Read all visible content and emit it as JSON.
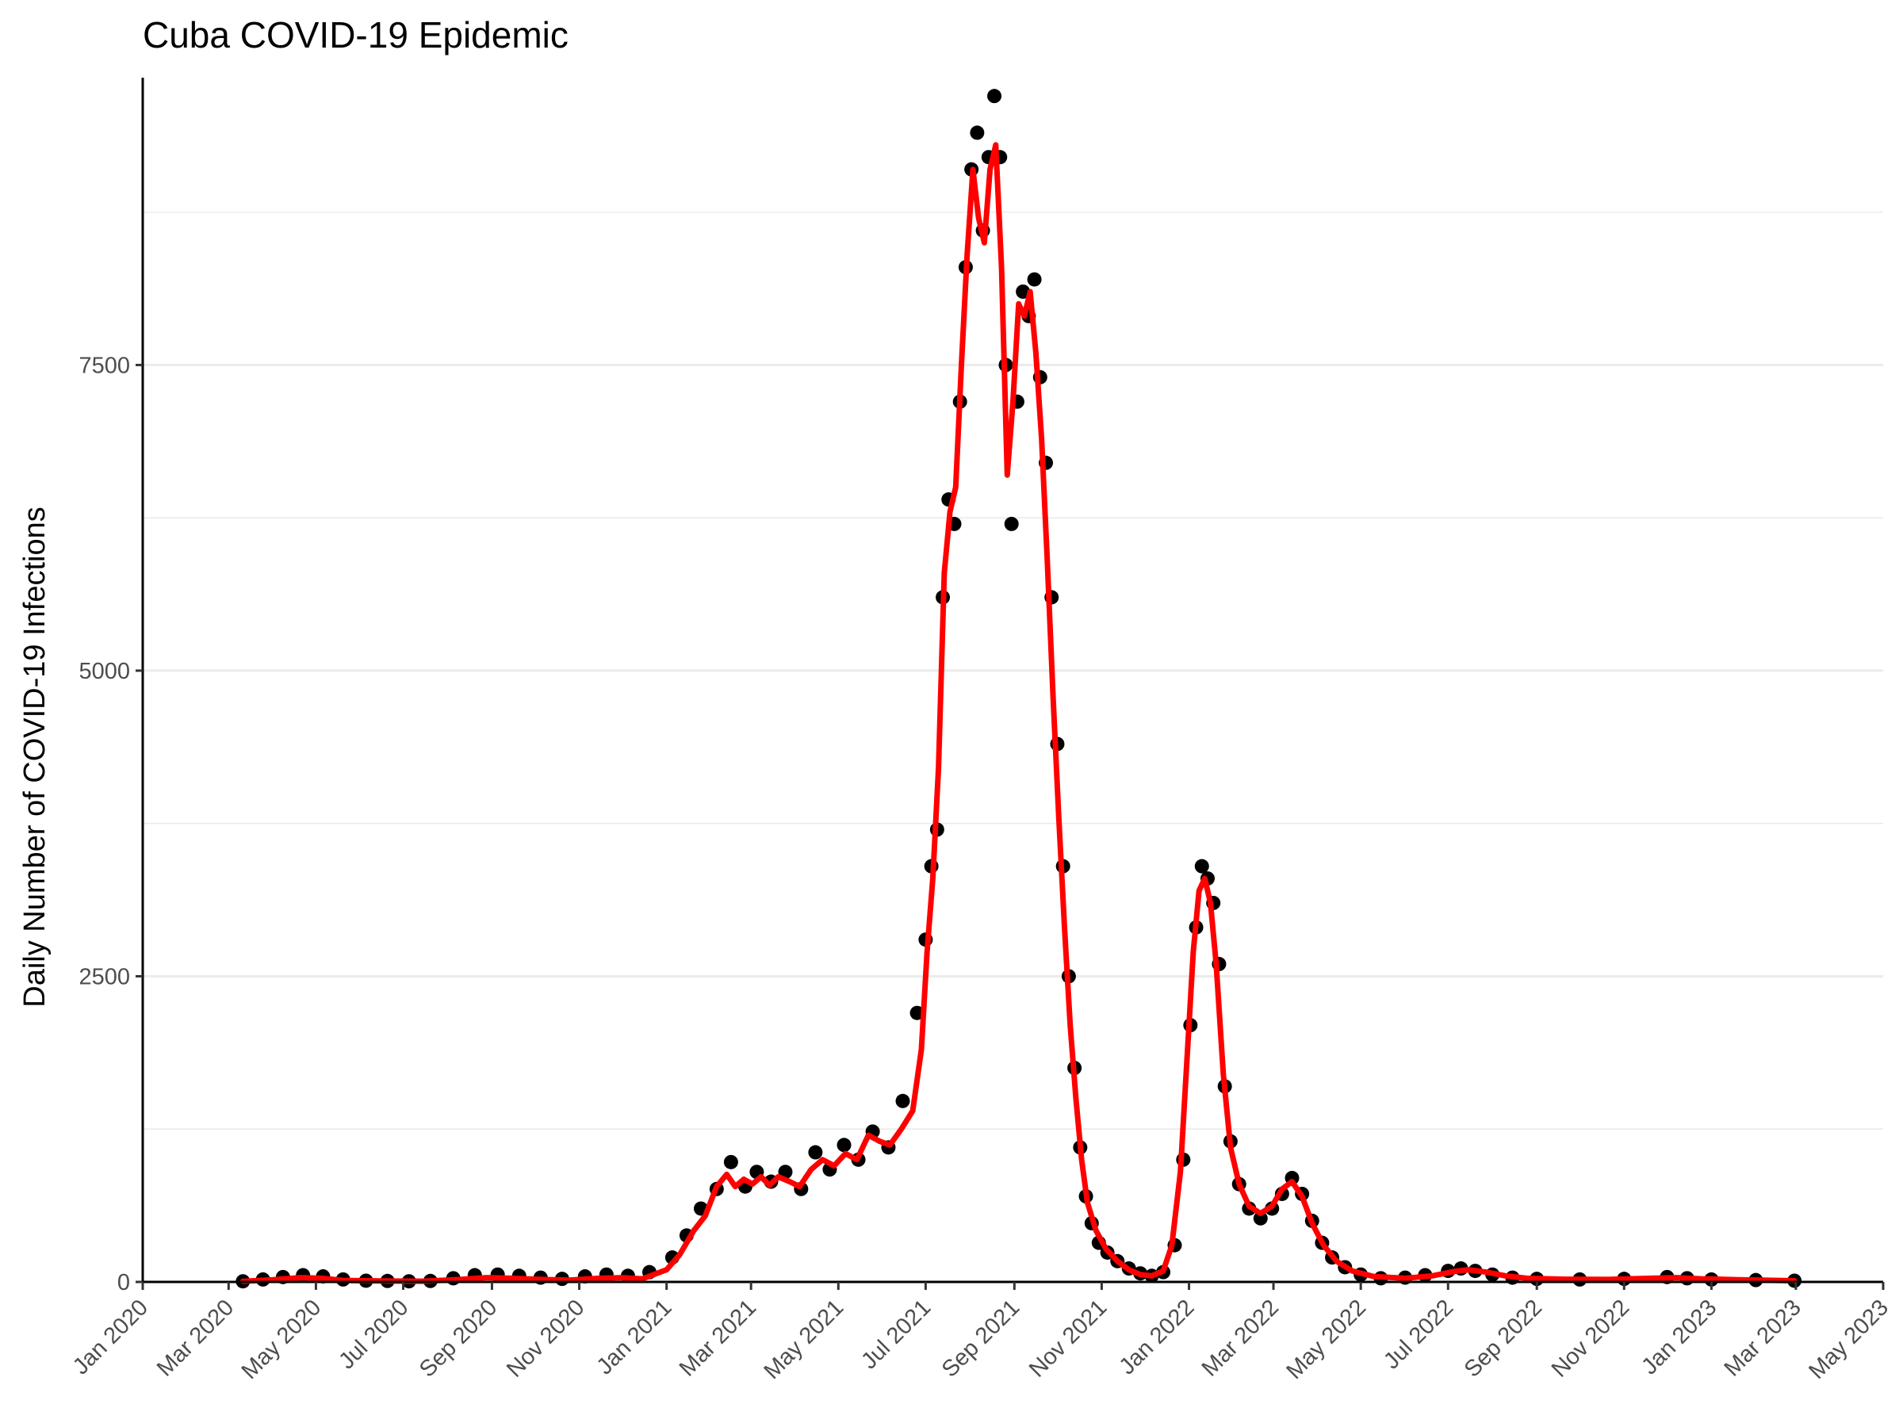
{
  "chart_data": {
    "type": "scatter",
    "title": "Cuba COVID-19 Epidemic",
    "xlabel": "",
    "ylabel": "Daily Number of COVID-19 Infections",
    "x_type": "date",
    "xlim": [
      "2020-01-01",
      "2023-05-01"
    ],
    "ylim": [
      0,
      9850
    ],
    "x_ticks": [
      "2020-01-01",
      "2020-03-01",
      "2020-05-01",
      "2020-07-01",
      "2020-09-01",
      "2020-11-01",
      "2021-01-01",
      "2021-03-01",
      "2021-05-01",
      "2021-07-01",
      "2021-09-01",
      "2021-11-01",
      "2022-01-01",
      "2022-03-01",
      "2022-05-01",
      "2022-07-01",
      "2022-09-01",
      "2022-11-01",
      "2023-01-01",
      "2023-03-01",
      "2023-05-01"
    ],
    "x_tick_labels": [
      "Jan 2020",
      "Mar 2020",
      "May 2020",
      "Jul 2020",
      "Sep 2020",
      "Nov 2020",
      "Jan 2021",
      "Mar 2021",
      "May 2021",
      "Jul 2021",
      "Sep 2021",
      "Nov 2021",
      "Jan 2022",
      "Mar 2022",
      "May 2022",
      "Jul 2022",
      "Sep 2022",
      "Nov 2022",
      "Jan 2023",
      "Mar 2023",
      "May 2023"
    ],
    "y_ticks": [
      0,
      2500,
      5000,
      7500
    ],
    "y_tick_labels": [
      "0",
      "2500",
      "5000",
      "7500"
    ],
    "y_minor_ticks": [
      1250,
      3750,
      6250,
      8750
    ],
    "grid": true,
    "legend": "none",
    "series": [
      {
        "kind": "points",
        "color": "#000000",
        "data": [
          [
            "2020-03-11",
            5
          ],
          [
            "2020-03-25",
            20
          ],
          [
            "2020-04-08",
            40
          ],
          [
            "2020-04-22",
            55
          ],
          [
            "2020-05-06",
            45
          ],
          [
            "2020-05-20",
            20
          ],
          [
            "2020-06-05",
            10
          ],
          [
            "2020-06-20",
            8
          ],
          [
            "2020-07-05",
            5
          ],
          [
            "2020-07-20",
            8
          ],
          [
            "2020-08-05",
            30
          ],
          [
            "2020-08-20",
            55
          ],
          [
            "2020-09-05",
            60
          ],
          [
            "2020-09-20",
            50
          ],
          [
            "2020-10-05",
            35
          ],
          [
            "2020-10-20",
            25
          ],
          [
            "2020-11-05",
            45
          ],
          [
            "2020-11-20",
            60
          ],
          [
            "2020-12-05",
            50
          ],
          [
            "2020-12-20",
            80
          ],
          [
            "2021-01-05",
            200
          ],
          [
            "2021-01-15",
            380
          ],
          [
            "2021-01-25",
            600
          ],
          [
            "2021-02-05",
            760
          ],
          [
            "2021-02-15",
            980
          ],
          [
            "2021-02-25",
            780
          ],
          [
            "2021-03-05",
            900
          ],
          [
            "2021-03-15",
            820
          ],
          [
            "2021-03-25",
            900
          ],
          [
            "2021-04-05",
            760
          ],
          [
            "2021-04-15",
            1060
          ],
          [
            "2021-04-25",
            920
          ],
          [
            "2021-05-05",
            1120
          ],
          [
            "2021-05-15",
            1000
          ],
          [
            "2021-05-25",
            1230
          ],
          [
            "2021-06-05",
            1100
          ],
          [
            "2021-06-15",
            1480
          ],
          [
            "2021-06-25",
            2200
          ],
          [
            "2021-07-01",
            2800
          ],
          [
            "2021-07-05",
            3400
          ],
          [
            "2021-07-09",
            3700
          ],
          [
            "2021-07-13",
            5600
          ],
          [
            "2021-07-17",
            6400
          ],
          [
            "2021-07-21",
            6200
          ],
          [
            "2021-07-25",
            7200
          ],
          [
            "2021-07-29",
            8300
          ],
          [
            "2021-08-02",
            9100
          ],
          [
            "2021-08-06",
            9400
          ],
          [
            "2021-08-10",
            8600
          ],
          [
            "2021-08-14",
            9200
          ],
          [
            "2021-08-18",
            9700
          ],
          [
            "2021-08-22",
            9200
          ],
          [
            "2021-08-26",
            7500
          ],
          [
            "2021-08-30",
            6200
          ],
          [
            "2021-09-03",
            7200
          ],
          [
            "2021-09-07",
            8100
          ],
          [
            "2021-09-11",
            7900
          ],
          [
            "2021-09-15",
            8200
          ],
          [
            "2021-09-19",
            7400
          ],
          [
            "2021-09-23",
            6700
          ],
          [
            "2021-09-27",
            5600
          ],
          [
            "2021-10-01",
            4400
          ],
          [
            "2021-10-05",
            3400
          ],
          [
            "2021-10-09",
            2500
          ],
          [
            "2021-10-13",
            1750
          ],
          [
            "2021-10-17",
            1100
          ],
          [
            "2021-10-21",
            700
          ],
          [
            "2021-10-25",
            480
          ],
          [
            "2021-10-30",
            320
          ],
          [
            "2021-11-05",
            240
          ],
          [
            "2021-11-12",
            170
          ],
          [
            "2021-11-20",
            110
          ],
          [
            "2021-11-28",
            70
          ],
          [
            "2021-12-06",
            50
          ],
          [
            "2021-12-14",
            80
          ],
          [
            "2021-12-22",
            300
          ],
          [
            "2021-12-28",
            1000
          ],
          [
            "2022-01-02",
            2100
          ],
          [
            "2022-01-06",
            2900
          ],
          [
            "2022-01-10",
            3400
          ],
          [
            "2022-01-14",
            3300
          ],
          [
            "2022-01-18",
            3100
          ],
          [
            "2022-01-22",
            2600
          ],
          [
            "2022-01-26",
            1600
          ],
          [
            "2022-01-30",
            1150
          ],
          [
            "2022-02-05",
            800
          ],
          [
            "2022-02-12",
            600
          ],
          [
            "2022-02-20",
            520
          ],
          [
            "2022-02-28",
            600
          ],
          [
            "2022-03-07",
            720
          ],
          [
            "2022-03-14",
            850
          ],
          [
            "2022-03-21",
            720
          ],
          [
            "2022-03-28",
            500
          ],
          [
            "2022-04-04",
            320
          ],
          [
            "2022-04-11",
            200
          ],
          [
            "2022-04-20",
            120
          ],
          [
            "2022-05-01",
            60
          ],
          [
            "2022-05-15",
            30
          ],
          [
            "2022-06-01",
            35
          ],
          [
            "2022-06-15",
            55
          ],
          [
            "2022-07-01",
            90
          ],
          [
            "2022-07-10",
            110
          ],
          [
            "2022-07-20",
            90
          ],
          [
            "2022-08-01",
            60
          ],
          [
            "2022-08-15",
            35
          ],
          [
            "2022-09-01",
            25
          ],
          [
            "2022-10-01",
            20
          ],
          [
            "2022-11-01",
            25
          ],
          [
            "2022-12-01",
            40
          ],
          [
            "2022-12-15",
            30
          ],
          [
            "2023-01-01",
            20
          ],
          [
            "2023-02-01",
            15
          ],
          [
            "2023-02-28",
            10
          ]
        ]
      },
      {
        "kind": "line",
        "color": "#ff0000",
        "data": [
          [
            "2020-03-11",
            5
          ],
          [
            "2020-04-01",
            18
          ],
          [
            "2020-04-20",
            35
          ],
          [
            "2020-05-05",
            30
          ],
          [
            "2020-05-20",
            12
          ],
          [
            "2020-06-15",
            8
          ],
          [
            "2020-07-15",
            6
          ],
          [
            "2020-08-10",
            20
          ],
          [
            "2020-08-28",
            35
          ],
          [
            "2020-09-15",
            30
          ],
          [
            "2020-10-05",
            20
          ],
          [
            "2020-10-25",
            15
          ],
          [
            "2020-11-15",
            30
          ],
          [
            "2020-12-01",
            35
          ],
          [
            "2020-12-15",
            25
          ],
          [
            "2021-01-01",
            100
          ],
          [
            "2021-01-10",
            220
          ],
          [
            "2021-01-20",
            420
          ],
          [
            "2021-01-28",
            540
          ],
          [
            "2021-02-05",
            780
          ],
          [
            "2021-02-12",
            880
          ],
          [
            "2021-02-18",
            780
          ],
          [
            "2021-02-24",
            840
          ],
          [
            "2021-03-02",
            800
          ],
          [
            "2021-03-08",
            860
          ],
          [
            "2021-03-14",
            790
          ],
          [
            "2021-03-20",
            860
          ],
          [
            "2021-03-28",
            820
          ],
          [
            "2021-04-04",
            780
          ],
          [
            "2021-04-12",
            920
          ],
          [
            "2021-04-20",
            1000
          ],
          [
            "2021-04-28",
            950
          ],
          [
            "2021-05-06",
            1050
          ],
          [
            "2021-05-14",
            1000
          ],
          [
            "2021-05-22",
            1200
          ],
          [
            "2021-05-30",
            1150
          ],
          [
            "2021-06-06",
            1120
          ],
          [
            "2021-06-14",
            1250
          ],
          [
            "2021-06-22",
            1400
          ],
          [
            "2021-06-28",
            1900
          ],
          [
            "2021-07-02",
            2700
          ],
          [
            "2021-07-06",
            3300
          ],
          [
            "2021-07-10",
            4200
          ],
          [
            "2021-07-14",
            5800
          ],
          [
            "2021-07-18",
            6300
          ],
          [
            "2021-07-22",
            6500
          ],
          [
            "2021-07-26",
            7500
          ],
          [
            "2021-07-30",
            8400
          ],
          [
            "2021-08-03",
            9100
          ],
          [
            "2021-08-07",
            8700
          ],
          [
            "2021-08-11",
            8500
          ],
          [
            "2021-08-15",
            9100
          ],
          [
            "2021-08-19",
            9300
          ],
          [
            "2021-08-23",
            8300
          ],
          [
            "2021-08-27",
            6600
          ],
          [
            "2021-08-31",
            7200
          ],
          [
            "2021-09-04",
            8000
          ],
          [
            "2021-09-08",
            7900
          ],
          [
            "2021-09-12",
            8100
          ],
          [
            "2021-09-16",
            7600
          ],
          [
            "2021-09-20",
            6900
          ],
          [
            "2021-09-24",
            5900
          ],
          [
            "2021-09-28",
            4800
          ],
          [
            "2021-10-02",
            3800
          ],
          [
            "2021-10-06",
            2900
          ],
          [
            "2021-10-10",
            2100
          ],
          [
            "2021-10-14",
            1500
          ],
          [
            "2021-10-18",
            1000
          ],
          [
            "2021-10-22",
            650
          ],
          [
            "2021-10-28",
            420
          ],
          [
            "2021-11-04",
            270
          ],
          [
            "2021-11-12",
            170
          ],
          [
            "2021-11-20",
            100
          ],
          [
            "2021-11-28",
            60
          ],
          [
            "2021-12-06",
            50
          ],
          [
            "2021-12-14",
            90
          ],
          [
            "2021-12-20",
            300
          ],
          [
            "2021-12-26",
            900
          ],
          [
            "2021-12-31",
            1900
          ],
          [
            "2022-01-04",
            2700
          ],
          [
            "2022-01-08",
            3200
          ],
          [
            "2022-01-12",
            3300
          ],
          [
            "2022-01-16",
            3100
          ],
          [
            "2022-01-20",
            2600
          ],
          [
            "2022-01-25",
            1700
          ],
          [
            "2022-01-30",
            1100
          ],
          [
            "2022-02-05",
            800
          ],
          [
            "2022-02-12",
            620
          ],
          [
            "2022-02-20",
            560
          ],
          [
            "2022-02-28",
            620
          ],
          [
            "2022-03-07",
            760
          ],
          [
            "2022-03-14",
            820
          ],
          [
            "2022-03-21",
            700
          ],
          [
            "2022-03-28",
            480
          ],
          [
            "2022-04-05",
            300
          ],
          [
            "2022-04-14",
            170
          ],
          [
            "2022-04-25",
            90
          ],
          [
            "2022-05-10",
            45
          ],
          [
            "2022-06-01",
            30
          ],
          [
            "2022-06-20",
            50
          ],
          [
            "2022-07-05",
            85
          ],
          [
            "2022-07-15",
            100
          ],
          [
            "2022-07-28",
            80
          ],
          [
            "2022-08-10",
            50
          ],
          [
            "2022-08-25",
            30
          ],
          [
            "2022-09-20",
            22
          ],
          [
            "2022-10-20",
            20
          ],
          [
            "2022-11-20",
            30
          ],
          [
            "2022-12-08",
            35
          ],
          [
            "2022-12-25",
            25
          ],
          [
            "2023-01-20",
            18
          ],
          [
            "2023-02-28",
            10
          ]
        ]
      }
    ]
  }
}
